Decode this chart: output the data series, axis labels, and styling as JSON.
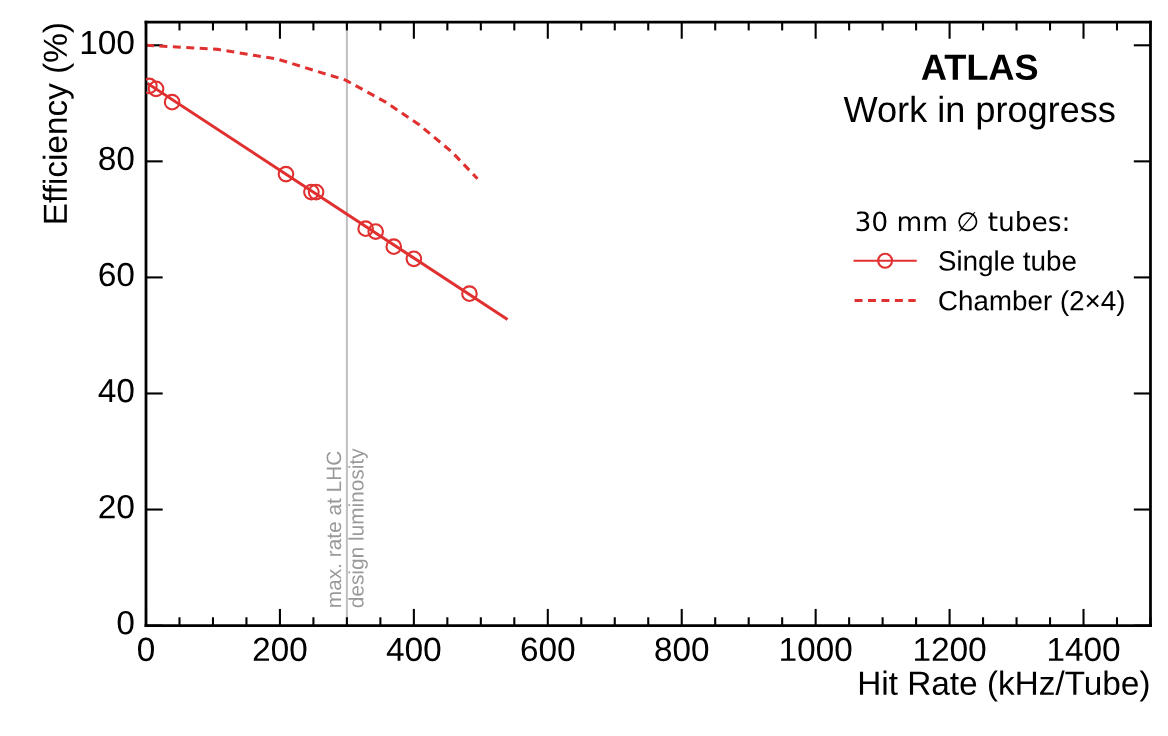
{
  "chart_data": {
    "type": "line",
    "xlabel": "Hit Rate (kHz/Tube)",
    "ylabel": "Efficiency (%)",
    "legend_title": "30 mm ∅ tubes:",
    "annotations": [
      "ATLAS",
      "Work in progress"
    ],
    "series": [
      {
        "name": "Single tube",
        "type": "scatter",
        "color": "#e03030",
        "marker": "circle",
        "x": [
          5,
          15,
          39,
          209,
          247,
          254,
          328,
          343,
          370,
          400,
          483
        ],
        "values": [
          93,
          92.5,
          90.2,
          77.8,
          74.7,
          74.7,
          68.4,
          67.9,
          65.3,
          63.2,
          57.2
        ]
      },
      {
        "color": "#e03030",
        "line_style": "solid",
        "x": [
          4,
          538
        ],
        "values": [
          93.3,
          52.9
        ]
      },
      {
        "name": "Chamber (2×4)",
        "color": "#e03030",
        "line_style": "dashed",
        "x": [
          0,
          107,
          197,
          298,
          358,
          408,
          457,
          495
        ],
        "values": [
          100,
          99.3,
          97.6,
          94,
          90.2,
          86.3,
          81.6,
          77
        ]
      }
    ],
    "ref_lines": [
      {
        "axis": "x",
        "value": 300,
        "label": "max. rate at LHC\ndesign luminosity",
        "color": "#c0c0c0"
      }
    ],
    "xlim": [
      0,
      1500
    ],
    "xticks": [
      0,
      200,
      400,
      600,
      800,
      1000,
      1200,
      1400
    ],
    "ylim": [
      0,
      104
    ],
    "yticks": [
      0,
      20,
      40,
      60,
      80,
      100
    ],
    "grid": false,
    "legend": "right"
  }
}
